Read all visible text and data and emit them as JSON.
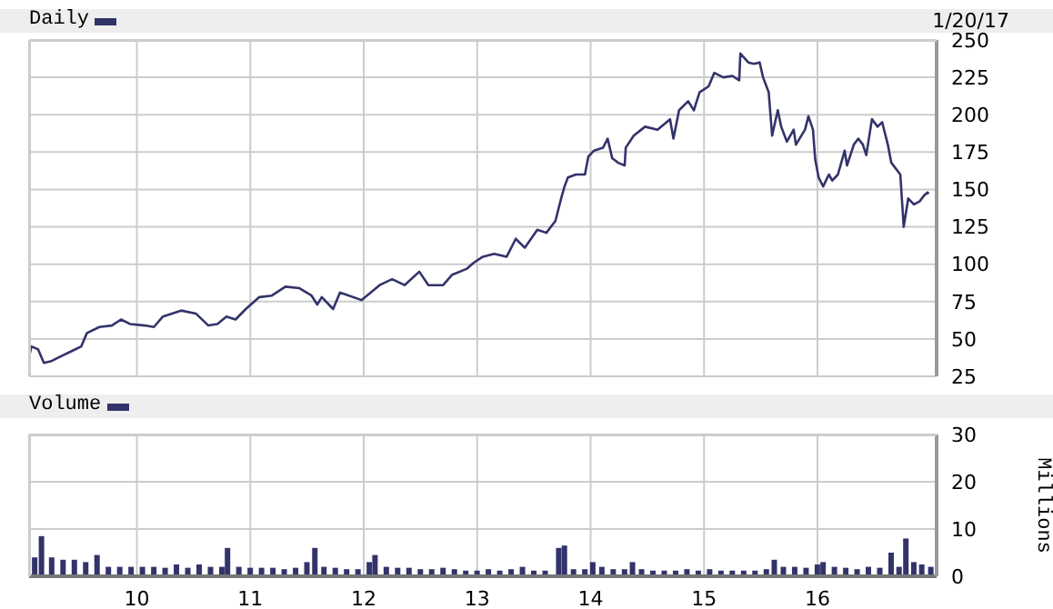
{
  "chart_data": [
    {
      "type": "line",
      "tick_labels": "y",
      "grid": true,
      "legend": "top left",
      "annotations": [
        "1/20/17"
      ],
      "xlim": [
        2009.05,
        2017.05
      ],
      "xticks": [
        2010,
        2011,
        2012,
        2013,
        2014,
        2015,
        2016
      ],
      "ylim": [
        25,
        250
      ],
      "yticks": [
        25,
        50,
        75,
        100,
        125,
        150,
        175,
        200,
        225,
        250
      ],
      "x": [
        2009.05,
        2009.07,
        2009.13,
        2009.18,
        2009.24,
        2009.32,
        2009.43,
        2009.51,
        2009.56,
        2009.67,
        2009.78,
        2009.86,
        2009.94,
        2010.07,
        2010.15,
        2010.23,
        2010.39,
        2010.52,
        2010.63,
        2010.71,
        2010.79,
        2010.87,
        2010.96,
        2011.08,
        2011.19,
        2011.31,
        2011.43,
        2011.54,
        2011.59,
        2011.63,
        2011.73,
        2011.79,
        2011.83,
        2011.98,
        2012.14,
        2012.25,
        2012.36,
        2012.49,
        2012.57,
        2012.7,
        2012.78,
        2012.91,
        2012.97,
        2013.05,
        2013.15,
        2013.26,
        2013.34,
        2013.42,
        2013.53,
        2013.61,
        2013.69,
        2013.74,
        2013.77,
        2013.8,
        2013.87,
        2013.95,
        2013.98,
        2014.03,
        2014.11,
        2014.15,
        2014.19,
        2014.24,
        2014.3,
        2014.31,
        2014.38,
        2014.48,
        2014.59,
        2014.7,
        2014.73,
        2014.78,
        2014.86,
        2014.91,
        2014.96,
        2015.04,
        2015.09,
        2015.17,
        2015.25,
        2015.31,
        2015.32,
        2015.39,
        2015.44,
        2015.49,
        2015.52,
        2015.57,
        2015.6,
        2015.65,
        2015.68,
        2015.73,
        2015.79,
        2015.81,
        2015.89,
        2015.92,
        2015.96,
        2015.98,
        2016.01,
        2016.05,
        2016.1,
        2016.13,
        2016.18,
        2016.24,
        2016.26,
        2016.32,
        2016.36,
        2016.4,
        2016.43,
        2016.48,
        2016.53,
        2016.57,
        2016.62,
        2016.65,
        2016.73,
        2016.76,
        2016.8,
        2016.85,
        2016.9,
        2016.94,
        2016.97,
        2016.98
      ],
      "series": [
        {
          "name": "Daily",
          "color": "#33336b",
          "values": [
            38,
            45,
            43,
            34,
            35,
            38,
            42,
            45,
            54,
            58,
            59,
            63,
            60,
            59,
            58,
            65,
            69,
            67,
            59,
            60,
            65,
            63,
            70,
            78,
            79,
            85,
            84,
            79,
            73,
            78,
            70,
            81,
            80,
            76,
            86,
            90,
            86,
            95,
            86,
            86,
            93,
            97,
            101,
            105,
            107,
            105,
            117,
            111,
            123,
            121,
            129,
            144,
            152,
            158,
            160,
            160,
            172,
            176,
            178,
            184,
            171,
            168,
            166,
            178,
            186,
            192,
            190,
            197,
            184,
            203,
            209,
            203,
            215,
            219,
            228,
            225,
            226,
            223,
            241,
            235,
            234,
            235,
            225,
            215,
            186,
            203,
            192,
            182,
            190,
            180,
            190,
            199,
            190,
            170,
            158,
            152,
            160,
            156,
            160,
            176,
            166,
            180,
            184,
            180,
            173,
            197,
            192,
            195,
            180,
            168,
            160,
            125,
            144,
            140,
            142,
            146,
            148,
            147
          ]
        }
      ]
    },
    {
      "type": "bar",
      "grid": true,
      "legend": "top left",
      "ylabel": "Millions",
      "xlim": [
        2009.05,
        2017.05
      ],
      "xticks": [
        {
          "value": 2010,
          "label": "10"
        },
        {
          "value": 2011,
          "label": "11"
        },
        {
          "value": 2012,
          "label": "12"
        },
        {
          "value": 2013,
          "label": "13"
        },
        {
          "value": 2014,
          "label": "14"
        },
        {
          "value": 2015,
          "label": "15"
        },
        {
          "value": 2016,
          "label": "16"
        }
      ],
      "ylim": [
        0,
        30
      ],
      "yticks": [
        0,
        10,
        20,
        30
      ],
      "x": [
        2009.1,
        2009.16,
        2009.25,
        2009.35,
        2009.45,
        2009.55,
        2009.65,
        2009.75,
        2009.85,
        2009.95,
        2010.05,
        2010.15,
        2010.25,
        2010.35,
        2010.45,
        2010.55,
        2010.65,
        2010.75,
        2010.8,
        2010.9,
        2011.0,
        2011.1,
        2011.2,
        2011.3,
        2011.4,
        2011.5,
        2011.57,
        2011.65,
        2011.75,
        2011.85,
        2011.95,
        2012.05,
        2012.1,
        2012.2,
        2012.3,
        2012.4,
        2012.5,
        2012.6,
        2012.7,
        2012.8,
        2012.9,
        2013.0,
        2013.1,
        2013.2,
        2013.3,
        2013.4,
        2013.5,
        2013.6,
        2013.72,
        2013.77,
        2013.85,
        2013.95,
        2014.02,
        2014.1,
        2014.2,
        2014.3,
        2014.37,
        2014.45,
        2014.55,
        2014.65,
        2014.75,
        2014.85,
        2014.95,
        2015.05,
        2015.15,
        2015.25,
        2015.35,
        2015.45,
        2015.55,
        2015.62,
        2015.7,
        2015.8,
        2015.9,
        2016.0,
        2016.05,
        2016.15,
        2016.25,
        2016.35,
        2016.45,
        2016.55,
        2016.65,
        2016.72,
        2016.78,
        2016.85,
        2016.92,
        2017.0
      ],
      "series": [
        {
          "name": "Volume",
          "color": "#33336b",
          "values": [
            4,
            8.5,
            4,
            3.5,
            3.5,
            3,
            4.5,
            2,
            2,
            2,
            2,
            2,
            1.8,
            2.5,
            1.8,
            2.5,
            2,
            2,
            6,
            2,
            1.8,
            1.8,
            1.8,
            1.5,
            1.8,
            3,
            6,
            2,
            1.8,
            1.5,
            1.5,
            3,
            4.5,
            2,
            1.8,
            1.8,
            1.5,
            1.5,
            1.8,
            1.5,
            1.2,
            1.2,
            1.5,
            1.2,
            1.5,
            2,
            1.2,
            1.2,
            6,
            6.5,
            1.5,
            1.5,
            3,
            2,
            1.5,
            1.5,
            3,
            1.5,
            1.2,
            1.2,
            1.2,
            1.5,
            1.2,
            1.5,
            1.2,
            1.2,
            1.2,
            1.2,
            1.5,
            3.5,
            2,
            2,
            1.8,
            2.5,
            3,
            2,
            1.8,
            1.5,
            2,
            1.8,
            5,
            2,
            8,
            3,
            2.5,
            2
          ]
        }
      ]
    }
  ]
}
